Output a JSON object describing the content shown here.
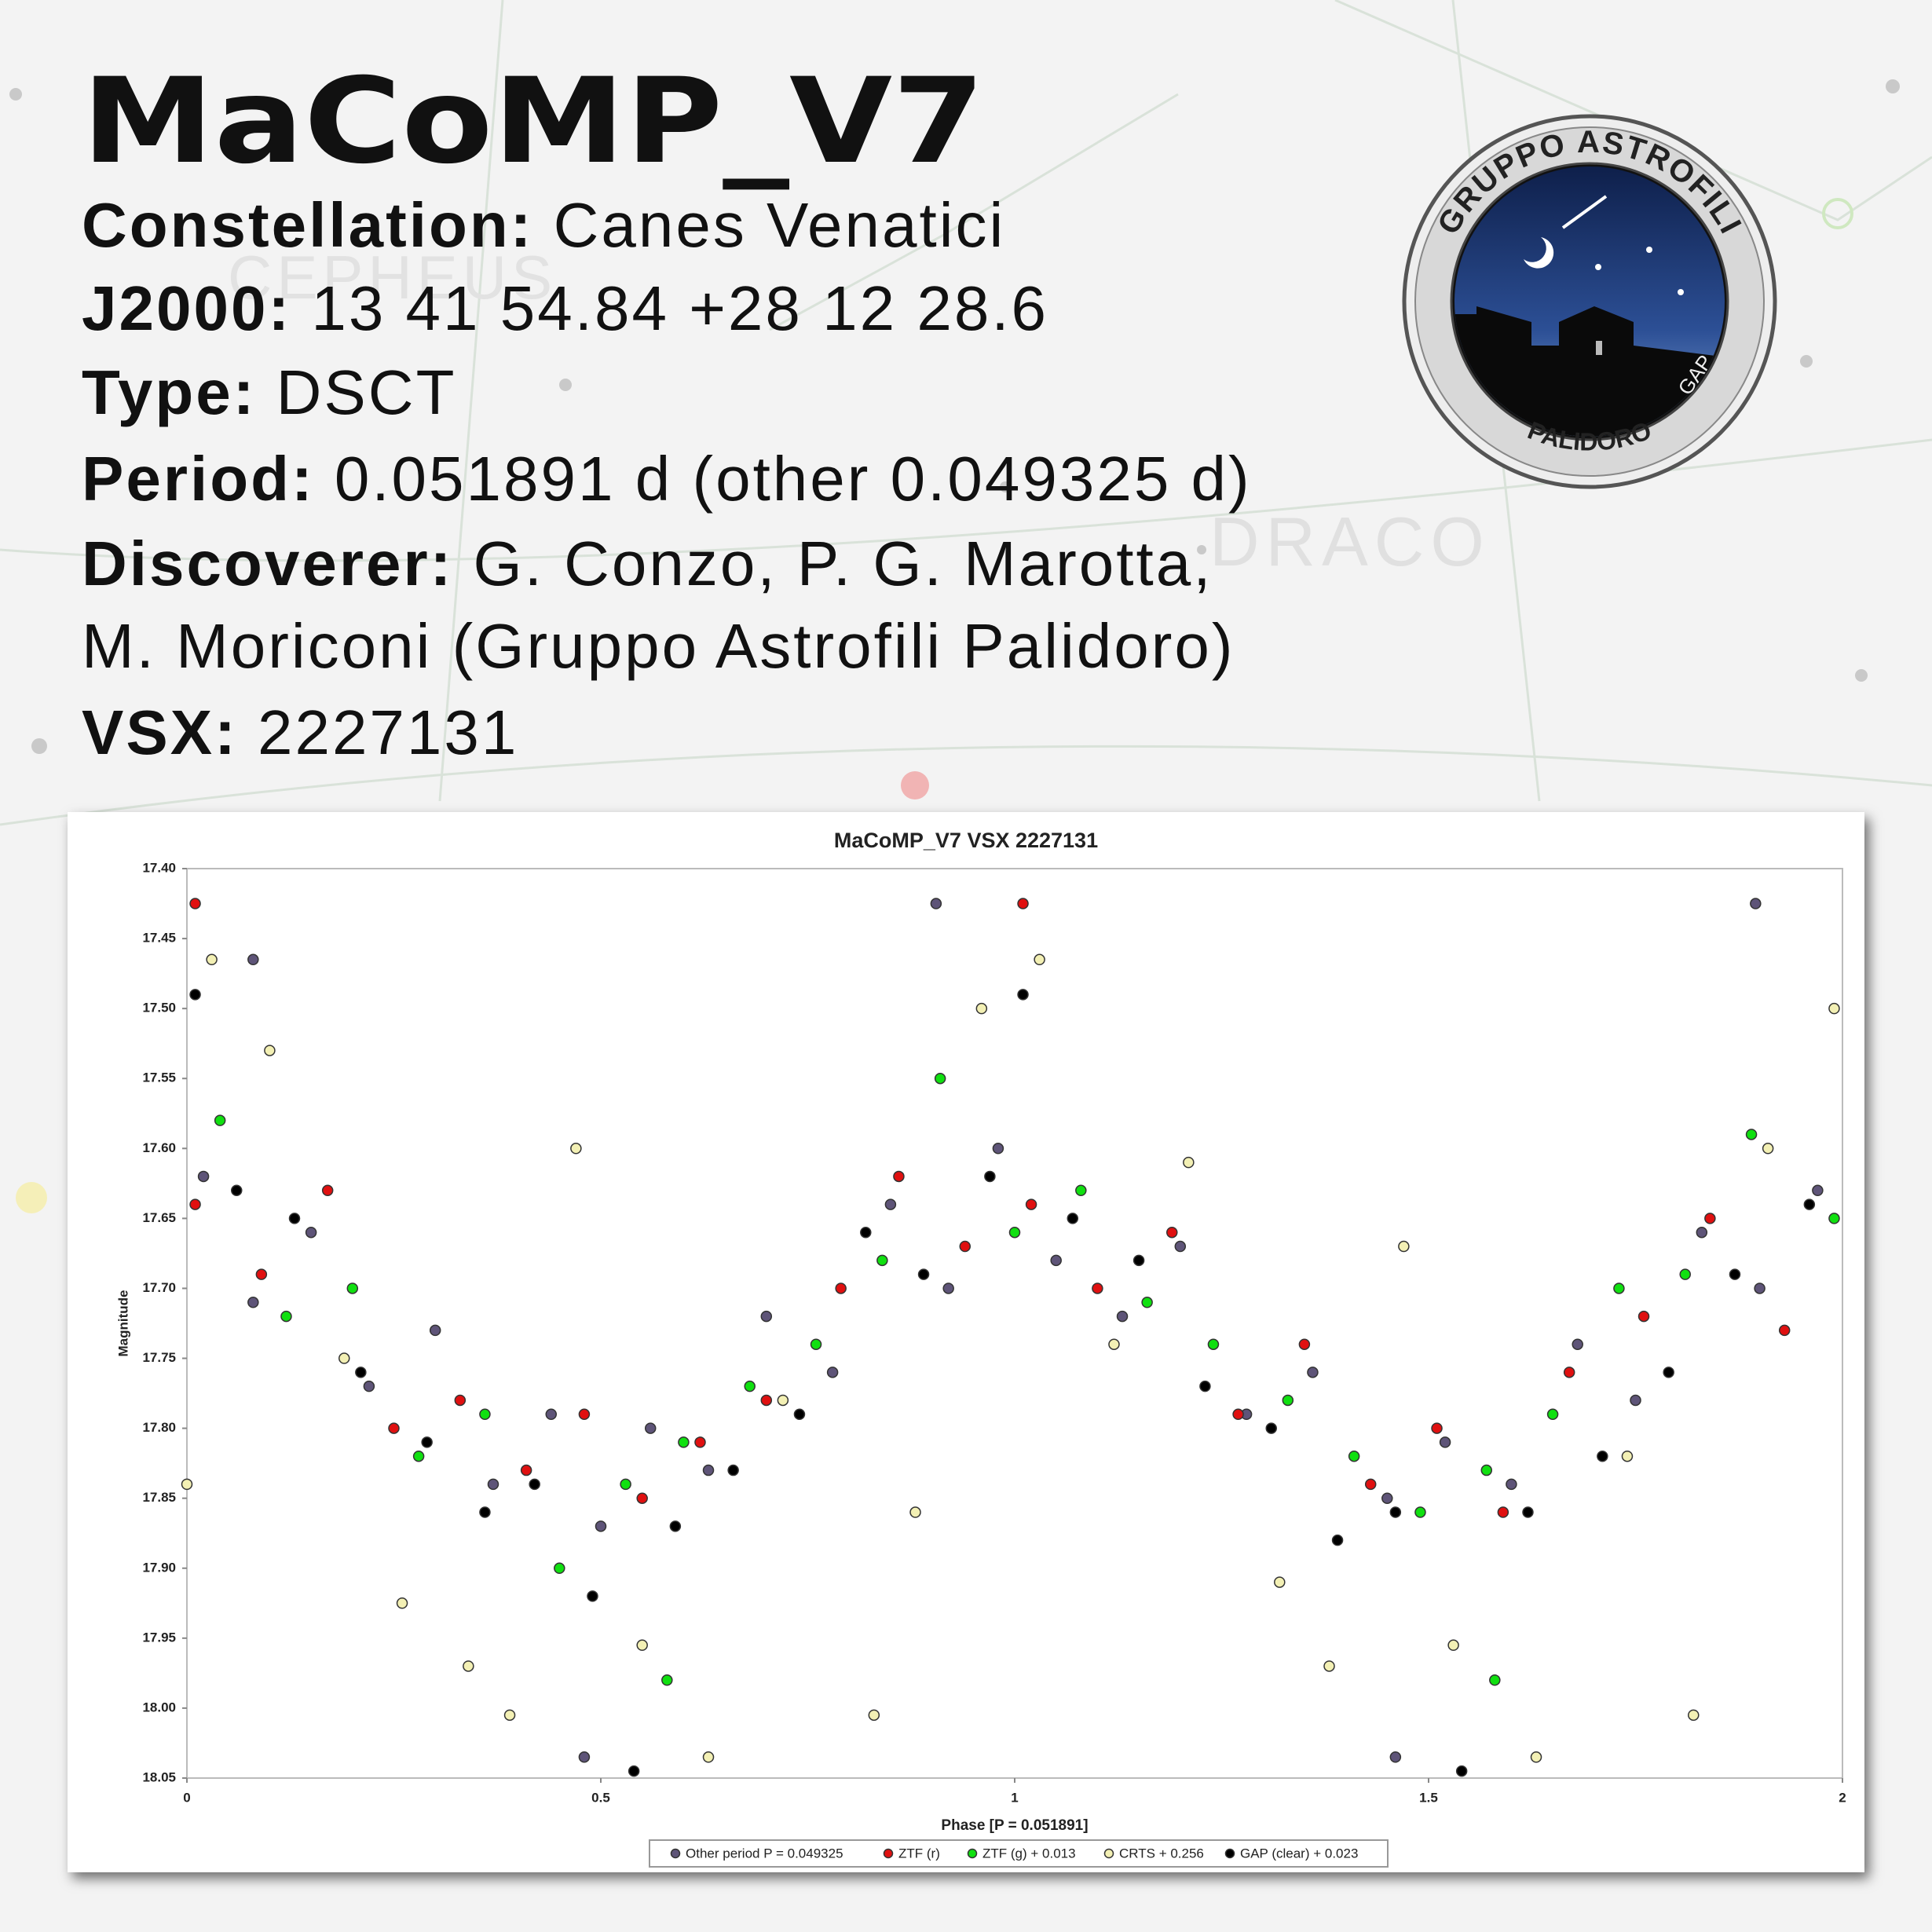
{
  "header": {
    "title": "MaCoMP_V7",
    "lines": [
      {
        "label": "Constellation:",
        "value": "Canes Venatici"
      },
      {
        "label": "J2000:",
        "value": "13 41 54.84 +28 12 28.6"
      },
      {
        "label": "Type:",
        "value": "DSCT"
      },
      {
        "label": "Period:",
        "value": "0.051891 d (other 0.049325 d)"
      },
      {
        "label": "Discoverer:",
        "value": "G. Conzo, P. G. Marotta,"
      },
      {
        "value": "M. Moriconi (Gruppo Astrofili Palidoro)"
      },
      {
        "label": "VSX:",
        "value": "2227131"
      }
    ]
  },
  "logo": {
    "top_text": "GRUPPO ASTROFILI",
    "bottom_text": "PALIDORO",
    "monogram": "GAP"
  },
  "background_labels": [
    "CEPHEUS",
    "DRACO"
  ],
  "chart_data": {
    "type": "scatter",
    "title": "MaCoMP_V7 VSX 2227131",
    "x_label": "Phase [P = 0.051891]",
    "y_label": "Magnitude",
    "xlim": [
      0,
      2
    ],
    "xticks": [
      0,
      0.5,
      1,
      1.5,
      2
    ],
    "ylim": [
      17.4,
      18.05
    ],
    "y_inverted": true,
    "yticks": [
      {
        "value": 17.4,
        "label": "17.40"
      },
      {
        "value": 17.45,
        "label": "17.45"
      },
      {
        "value": 17.5,
        "label": "17.50"
      },
      {
        "value": 17.55,
        "label": "17.55"
      },
      {
        "value": 17.6,
        "label": "17.60"
      },
      {
        "value": 17.65,
        "label": "17.65"
      },
      {
        "value": 17.7,
        "label": "17.70"
      },
      {
        "value": 17.75,
        "label": "17.75"
      },
      {
        "value": 17.8,
        "label": "17.80"
      },
      {
        "value": 17.85,
        "label": "17.85"
      },
      {
        "value": 17.9,
        "label": "17.90"
      },
      {
        "value": 17.95,
        "label": "17.95"
      },
      {
        "value": 18.0,
        "label": "18.00"
      },
      {
        "value": 18.05,
        "label": "18.05"
      }
    ],
    "grid": false,
    "legend": "bottom",
    "series": [
      {
        "name": "Other period P = 0.049325",
        "color": "#5e5478",
        "x": [
          0.02,
          0.08,
          0.15,
          0.22,
          0.3,
          0.37,
          0.44,
          0.5,
          0.56,
          0.63,
          0.7,
          0.78,
          0.85,
          0.92,
          0.98,
          1.05,
          1.13,
          1.2,
          1.28,
          1.36,
          1.45,
          1.52,
          1.6,
          1.68,
          1.75,
          1.83,
          1.9,
          1.97,
          0.905,
          1.895,
          0.48,
          1.46,
          0.08
        ],
        "values": [
          17.62,
          17.71,
          17.66,
          17.77,
          17.73,
          17.84,
          17.79,
          17.87,
          17.8,
          17.83,
          17.72,
          17.76,
          17.64,
          17.7,
          17.6,
          17.68,
          17.72,
          17.67,
          17.79,
          17.76,
          17.85,
          17.81,
          17.84,
          17.74,
          17.78,
          17.66,
          17.7,
          17.63,
          17.425,
          17.425,
          18.035,
          18.035,
          17.465
        ]
      },
      {
        "name": "ZTF (r)",
        "color": "#e01010",
        "x": [
          0.01,
          0.09,
          0.17,
          0.25,
          0.33,
          0.41,
          0.48,
          0.55,
          0.62,
          0.7,
          0.79,
          0.86,
          0.94,
          1.02,
          1.1,
          1.19,
          1.27,
          1.35,
          1.43,
          1.51,
          1.59,
          1.67,
          1.76,
          1.84,
          1.93,
          0.01,
          1.01
        ],
        "values": [
          17.64,
          17.69,
          17.63,
          17.8,
          17.78,
          17.83,
          17.79,
          17.85,
          17.81,
          17.78,
          17.7,
          17.62,
          17.67,
          17.64,
          17.7,
          17.66,
          17.79,
          17.74,
          17.84,
          17.8,
          17.86,
          17.76,
          17.72,
          17.65,
          17.73,
          17.425,
          17.425
        ]
      },
      {
        "name": "ZTF (g) + 0.013",
        "color": "#10e010",
        "x": [
          0.04,
          0.12,
          0.2,
          0.28,
          0.36,
          0.45,
          0.53,
          0.6,
          0.68,
          0.76,
          0.84,
          0.91,
          1.0,
          1.08,
          1.16,
          1.24,
          1.33,
          1.41,
          1.49,
          1.57,
          1.65,
          1.73,
          1.81,
          1.89,
          1.99,
          0.58,
          1.58
        ],
        "values": [
          17.58,
          17.72,
          17.7,
          17.82,
          17.79,
          17.9,
          17.84,
          17.81,
          17.77,
          17.74,
          17.68,
          17.55,
          17.66,
          17.63,
          17.71,
          17.74,
          17.78,
          17.82,
          17.86,
          17.83,
          17.79,
          17.7,
          17.69,
          17.59,
          17.65,
          17.98,
          17.98
        ]
      },
      {
        "name": "CRTS + 0.256",
        "color": "#f3f0b4",
        "x": [
          0.0,
          0.03,
          0.1,
          0.19,
          0.26,
          0.34,
          0.39,
          0.47,
          0.55,
          0.63,
          0.72,
          0.83,
          0.88,
          0.96,
          1.03,
          1.12,
          1.21,
          1.32,
          1.38,
          1.47,
          1.53,
          1.63,
          1.74,
          1.82,
          1.91,
          1.99
        ],
        "values": [
          17.84,
          17.465,
          17.53,
          17.75,
          17.925,
          17.97,
          18.005,
          17.6,
          17.955,
          18.035,
          17.78,
          18.005,
          17.86,
          17.5,
          17.465,
          17.74,
          17.61,
          17.91,
          17.97,
          17.67,
          17.955,
          18.035,
          17.82,
          18.005,
          17.6,
          17.5
        ]
      },
      {
        "name": "GAP (clear) + 0.023",
        "color": "#000000",
        "x": [
          0.01,
          0.06,
          0.13,
          0.21,
          0.29,
          0.36,
          0.42,
          0.49,
          0.54,
          0.59,
          0.66,
          0.74,
          0.82,
          0.89,
          0.97,
          1.01,
          1.07,
          1.15,
          1.23,
          1.31,
          1.39,
          1.46,
          1.54,
          1.62,
          1.71,
          1.79,
          1.87,
          1.96
        ],
        "values": [
          17.49,
          17.63,
          17.65,
          17.76,
          17.81,
          17.86,
          17.84,
          17.92,
          18.045,
          17.87,
          17.83,
          17.79,
          17.66,
          17.69,
          17.62,
          17.49,
          17.65,
          17.68,
          17.77,
          17.8,
          17.88,
          17.86,
          18.045,
          17.86,
          17.82,
          17.76,
          17.69,
          17.64
        ]
      }
    ]
  }
}
